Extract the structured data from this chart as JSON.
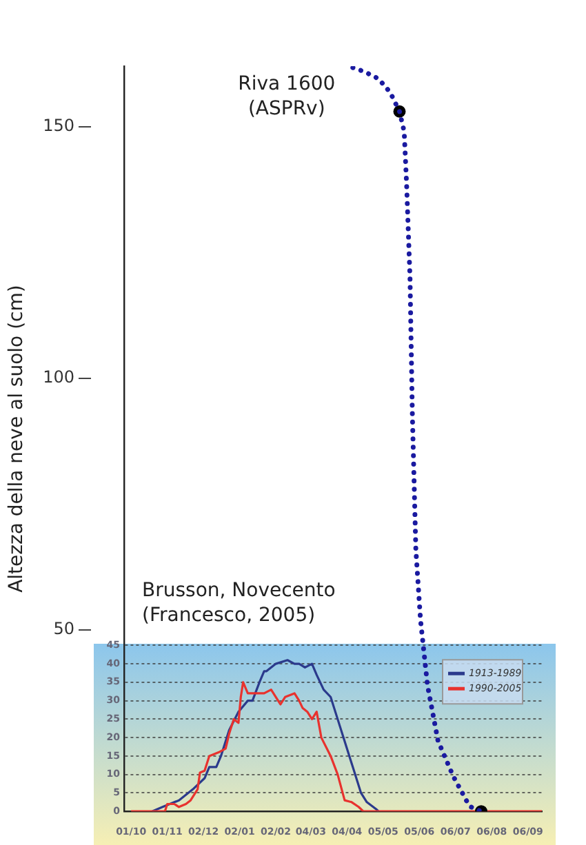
{
  "chart_data": {
    "type": "line",
    "ylabel": "Altezza della neve al suolo (cm)",
    "xlim": [
      "2000-09-25",
      "2001-09-18"
    ],
    "ylim": [
      14,
      162
    ],
    "yticks": [
      50,
      100,
      150
    ],
    "y2lim": [
      0,
      202
    ],
    "y2ticks": [
      0,
      5,
      10,
      15,
      20,
      25,
      30,
      35,
      40,
      45
    ],
    "xticks": [
      {
        "value": "2000-10-01",
        "label": "01/10"
      },
      {
        "value": "2000-11-01",
        "label": "01/11"
      },
      {
        "value": "2000-12-02",
        "label": "02/12"
      },
      {
        "value": "2001-01-02",
        "label": "02/01"
      },
      {
        "value": "2001-02-02",
        "label": "02/02"
      },
      {
        "value": "2001-03-04",
        "label": "04/03"
      },
      {
        "value": "2001-04-04",
        "label": "04/04"
      },
      {
        "value": "2001-05-05",
        "label": "05/05"
      },
      {
        "value": "2001-06-05",
        "label": "05/06"
      },
      {
        "value": "2001-07-06",
        "label": "06/07"
      },
      {
        "value": "2001-08-06",
        "label": "06/08"
      },
      {
        "value": "2001-09-06",
        "label": "06/09"
      }
    ],
    "grid": "y",
    "legend": "bottom right",
    "series": [
      {
        "name": "Riva 1600\n(ASPRv)",
        "x": [
          "2001-04-09",
          "2001-04-19",
          "2001-05-01",
          "2001-05-11",
          "2001-05-19",
          "2001-05-23",
          "2001-05-25",
          "2001-05-28",
          "2001-05-30",
          "2001-06-02",
          "2001-06-06",
          "2001-06-12",
          "2001-06-21",
          "2001-07-04",
          "2001-07-18",
          "2001-07-28"
        ],
        "values": [
          161.7,
          160.9,
          159.5,
          156.8,
          153,
          149,
          139,
          120,
          93,
          66,
          52,
          39,
          28,
          21,
          15,
          14
        ],
        "color": "#1a1aa0",
        "line_style": "dotted",
        "marker": "none"
      },
      {
        "type": "scatter",
        "x": [
          "2001-05-19",
          "2001-07-28"
        ],
        "values": [
          153,
          14
        ],
        "color": "#000000",
        "marker": "circle"
      },
      {
        "name": "1913-1989",
        "axis": "y2",
        "color": "#2b3a8c",
        "x": [
          "2000-10-19",
          "2000-10-28",
          "2000-11-11",
          "2000-11-23",
          "2000-12-03",
          "2000-12-07",
          "2000-12-13",
          "2000-12-17",
          "2000-12-24",
          "2001-01-01",
          "2001-01-09",
          "2001-01-13",
          "2001-01-19",
          "2001-01-23",
          "2001-01-25",
          "2001-02-02",
          "2001-02-12",
          "2001-02-18",
          "2001-02-22",
          "2001-02-27",
          "2001-03-05",
          "2001-03-09",
          "2001-03-15",
          "2001-03-21",
          "2001-03-27",
          "2001-04-02",
          "2001-04-10",
          "2001-04-16",
          "2001-04-21",
          "2001-04-29",
          "2001-05-01"
        ],
        "values": [
          0,
          1.2,
          3,
          6,
          9,
          12,
          12,
          15,
          22,
          27,
          30,
          30,
          35,
          38,
          38,
          40,
          41,
          40,
          40,
          39,
          40,
          37,
          33,
          31,
          25,
          19,
          11,
          5,
          2.5,
          0.6,
          0
        ]
      },
      {
        "name": "1990-2005",
        "axis": "y2",
        "color": "#e8322e",
        "x": [
          "2000-10-01",
          "2000-10-30",
          "2000-11-01",
          "2000-11-07",
          "2000-11-11",
          "2000-11-17",
          "2000-11-21",
          "2000-11-27",
          "2000-11-29",
          "2000-12-03",
          "2000-12-07",
          "2000-12-15",
          "2000-12-21",
          "2000-12-24",
          "2000-12-28",
          "2001-01-01",
          "2001-01-03",
          "2001-01-05",
          "2001-01-09",
          "2001-01-17",
          "2001-01-23",
          "2001-01-29",
          "2001-02-06",
          "2001-02-10",
          "2001-02-18",
          "2001-02-22",
          "2001-02-25",
          "2001-03-01",
          "2001-03-05",
          "2001-03-09",
          "2001-03-13",
          "2001-03-21",
          "2001-03-27",
          "2001-04-02",
          "2001-04-08",
          "2001-04-14",
          "2001-04-18",
          "2001-09-18"
        ],
        "values": [
          0,
          0,
          2,
          2,
          1.2,
          2,
          3,
          6,
          10.5,
          11,
          15,
          16,
          17,
          21,
          25,
          24,
          31,
          35,
          32,
          32,
          32,
          33,
          29,
          31,
          32,
          30,
          28,
          27,
          25,
          27,
          20,
          15,
          10,
          3,
          2.5,
          1.2,
          0,
          0
        ]
      }
    ],
    "annotations": [
      "Brusson, Novecento\n(Francesco, 2005)"
    ]
  }
}
